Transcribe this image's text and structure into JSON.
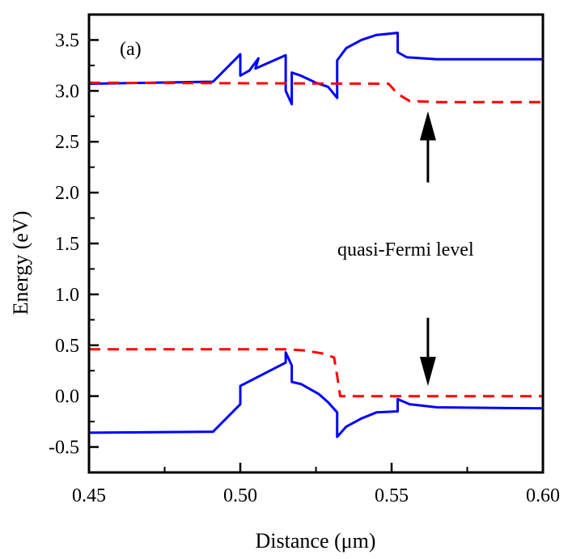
{
  "chart_data": {
    "type": "line",
    "panel_label": "(a)",
    "xlabel": "Distance (μm)",
    "ylabel": "Energy (eV)",
    "xlim": [
      0.45,
      0.6
    ],
    "ylim": [
      -0.75,
      3.75
    ],
    "x_ticks": [
      0.45,
      0.5,
      0.55,
      0.6
    ],
    "x_tick_labels": [
      "0.45",
      "0.50",
      "0.55",
      "0.60"
    ],
    "y_ticks": [
      -0.5,
      0.0,
      0.5,
      1.0,
      1.5,
      2.0,
      2.5,
      3.0,
      3.5
    ],
    "y_tick_labels": [
      "-0.5",
      "0.0",
      "0.5",
      "1.0",
      "1.5",
      "2.0",
      "2.5",
      "3.0",
      "3.5"
    ],
    "annotation": "quasi-Fermi level",
    "colors": {
      "bands": "#0000ff",
      "fermi": "#ff0000",
      "axes": "#000000"
    },
    "series": [
      {
        "role": "conduction-band",
        "style": "solid",
        "color": "#0000ff",
        "points": [
          [
            0.45,
            3.07
          ],
          [
            0.491,
            3.09
          ],
          [
            0.5,
            3.36
          ],
          [
            0.5,
            3.15
          ],
          [
            0.503,
            3.2
          ],
          [
            0.506,
            3.32
          ],
          [
            0.505,
            3.22
          ],
          [
            0.515,
            3.35
          ],
          [
            0.515,
            3.0
          ],
          [
            0.517,
            2.87
          ],
          [
            0.517,
            3.18
          ],
          [
            0.52,
            3.15
          ],
          [
            0.525,
            3.08
          ],
          [
            0.529,
            3.04
          ],
          [
            0.532,
            2.93
          ],
          [
            0.532,
            3.3
          ],
          [
            0.535,
            3.42
          ],
          [
            0.54,
            3.5
          ],
          [
            0.545,
            3.55
          ],
          [
            0.552,
            3.57
          ],
          [
            0.552,
            3.38
          ],
          [
            0.555,
            3.33
          ],
          [
            0.565,
            3.31
          ],
          [
            0.6,
            3.31
          ]
        ]
      },
      {
        "role": "valence-band",
        "style": "solid",
        "color": "#0000ff",
        "points": [
          [
            0.45,
            -0.36
          ],
          [
            0.491,
            -0.35
          ],
          [
            0.5,
            -0.08
          ],
          [
            0.5,
            0.1
          ],
          [
            0.515,
            0.33
          ],
          [
            0.515,
            0.43
          ],
          [
            0.517,
            0.3
          ],
          [
            0.517,
            0.14
          ],
          [
            0.52,
            0.12
          ],
          [
            0.526,
            0.02
          ],
          [
            0.529,
            -0.06
          ],
          [
            0.532,
            -0.16
          ],
          [
            0.532,
            -0.4
          ],
          [
            0.535,
            -0.3
          ],
          [
            0.54,
            -0.22
          ],
          [
            0.545,
            -0.16
          ],
          [
            0.552,
            -0.15
          ],
          [
            0.552,
            -0.03
          ],
          [
            0.556,
            -0.08
          ],
          [
            0.565,
            -0.11
          ],
          [
            0.6,
            -0.12
          ]
        ]
      },
      {
        "role": "electron-quasi-fermi-level",
        "style": "dashed",
        "color": "#ff0000",
        "points": [
          [
            0.45,
            3.08
          ],
          [
            0.549,
            3.07
          ],
          [
            0.552,
            2.97
          ],
          [
            0.556,
            2.9
          ],
          [
            0.565,
            2.89
          ],
          [
            0.6,
            2.89
          ]
        ]
      },
      {
        "role": "hole-quasi-fermi-level",
        "style": "dashed",
        "color": "#ff0000",
        "points": [
          [
            0.45,
            0.46
          ],
          [
            0.515,
            0.46
          ],
          [
            0.521,
            0.45
          ],
          [
            0.527,
            0.42
          ],
          [
            0.531,
            0.38
          ],
          [
            0.532,
            0.2
          ],
          [
            0.533,
            0.0
          ],
          [
            0.6,
            0.0
          ]
        ]
      }
    ],
    "arrows": [
      {
        "x": 0.562,
        "from_y": 2.1,
        "to_y": 2.8
      },
      {
        "x": 0.562,
        "from_y": 0.77,
        "to_y": 0.1
      }
    ]
  }
}
